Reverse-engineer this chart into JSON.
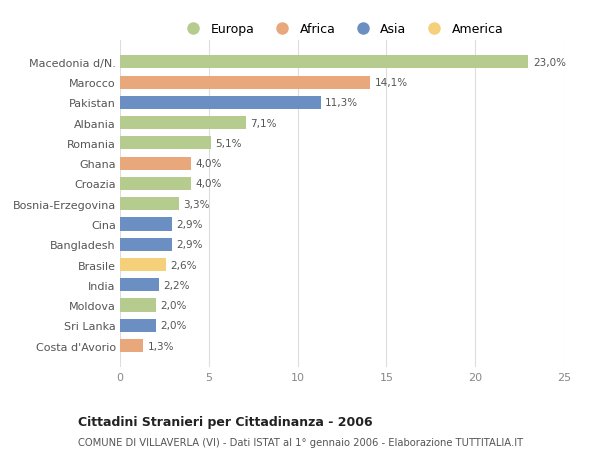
{
  "countries": [
    "Macedonia d/N.",
    "Marocco",
    "Pakistan",
    "Albania",
    "Romania",
    "Ghana",
    "Croazia",
    "Bosnia-Erzegovina",
    "Cina",
    "Bangladesh",
    "Brasile",
    "India",
    "Moldova",
    "Sri Lanka",
    "Costa d'Avorio"
  ],
  "values": [
    23.0,
    14.1,
    11.3,
    7.1,
    5.1,
    4.0,
    4.0,
    3.3,
    2.9,
    2.9,
    2.6,
    2.2,
    2.0,
    2.0,
    1.3
  ],
  "labels": [
    "23,0%",
    "14,1%",
    "11,3%",
    "7,1%",
    "5,1%",
    "4,0%",
    "4,0%",
    "3,3%",
    "2,9%",
    "2,9%",
    "2,6%",
    "2,2%",
    "2,0%",
    "2,0%",
    "1,3%"
  ],
  "colors": [
    "#b5cc8e",
    "#e8a87c",
    "#6b8fc2",
    "#b5cc8e",
    "#b5cc8e",
    "#e8a87c",
    "#b5cc8e",
    "#b5cc8e",
    "#6b8fc2",
    "#6b8fc2",
    "#f5d07a",
    "#6b8fc2",
    "#b5cc8e",
    "#6b8fc2",
    "#e8a87c"
  ],
  "legend_labels": [
    "Europa",
    "Africa",
    "Asia",
    "America"
  ],
  "legend_colors": [
    "#b5cc8e",
    "#e8a87c",
    "#6b8fc2",
    "#f5d07a"
  ],
  "title": "Cittadini Stranieri per Cittadinanza - 2006",
  "subtitle": "COMUNE DI VILLAVERLA (VI) - Dati ISTAT al 1° gennaio 2006 - Elaborazione TUTTITALIA.IT",
  "xlim": [
    0,
    25
  ],
  "xticks": [
    0,
    5,
    10,
    15,
    20,
    25
  ],
  "background_color": "#ffffff",
  "bar_background": "#ffffff",
  "grid_color": "#dddddd"
}
